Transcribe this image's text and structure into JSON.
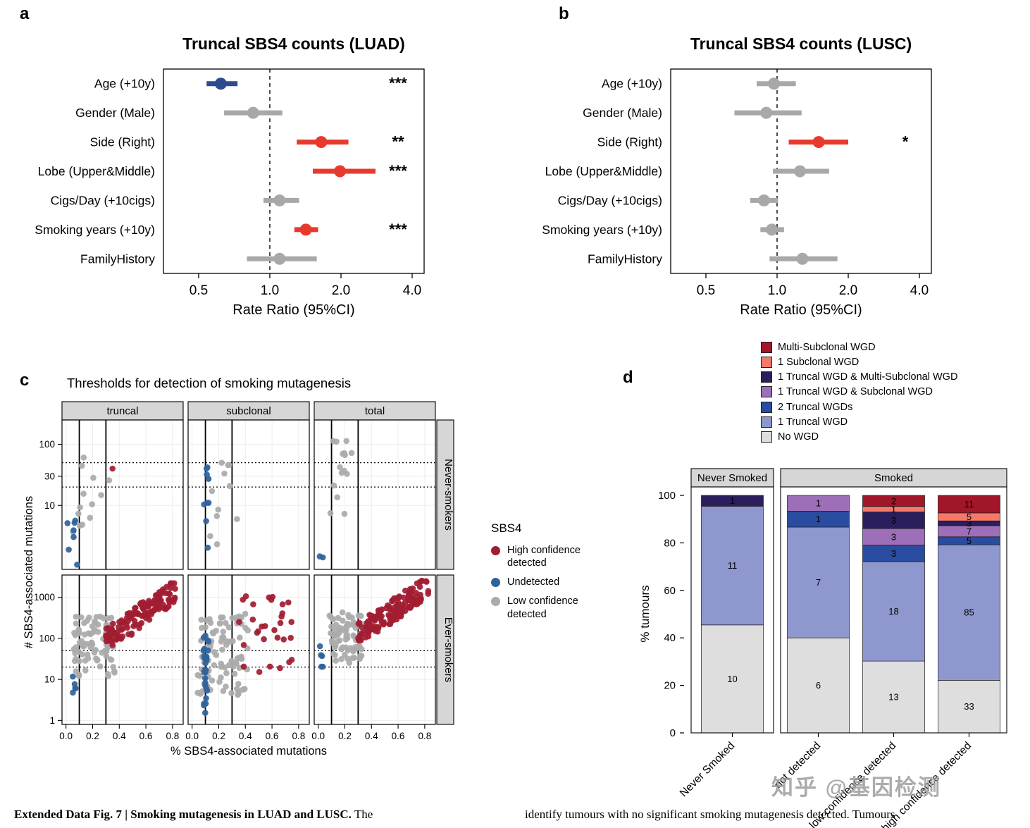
{
  "figure": {
    "panels": {
      "a": "a",
      "b": "b",
      "c": "c",
      "d": "d"
    },
    "watermark": "知乎 @基因检测",
    "caption": {
      "left_bold": "Extended Data Fig. 7 | Smoking mutagenesis in LUAD and LUSC.",
      "left_rest": " The",
      "right": "identify tumours with no significant smoking mutagenesis detected. Tumours"
    }
  },
  "colors": {
    "forest_red": "#E8392D",
    "forest_blue": "#2E4B8F",
    "forest_gray": "#A8A8A8",
    "scatter_high": "#A21D32",
    "scatter_undetected": "#30639C",
    "scatter_low": "#ABABAB",
    "strip_bg": "#D6D6D6",
    "wgd": {
      "Multi-Subclonal WGD": "#A11729",
      "1 Subclonal WGD": "#F4796B",
      "1 Truncal WGD & Multi-Subclonal WGD": "#2A1E5C",
      "1 Truncal WGD & Subclonal WGD": "#9C6FB8",
      "2 Truncal WGDs": "#2A4CA0",
      "1 Truncal WGD": "#8E97CE",
      "No WGD": "#DEDEDE"
    }
  },
  "chart_data": [
    {
      "id": "forest_luad",
      "type": "scatter",
      "subtype": "forest-plot",
      "title": "Truncal SBS4 counts (LUAD)",
      "xlabel": "Rate Ratio (95%CI)",
      "xscale": "log2",
      "xticks": [
        "0.5",
        "1.0",
        "2.0",
        "4.0"
      ],
      "xtick_values": [
        0.5,
        1.0,
        2.0,
        4.0
      ],
      "ref_line": 1.0,
      "rows": [
        {
          "label": "Age (+10y)",
          "est": 0.62,
          "lo": 0.54,
          "hi": 0.73,
          "group": "blue",
          "sig": "***"
        },
        {
          "label": "Gender (Male)",
          "est": 0.85,
          "lo": 0.64,
          "hi": 1.13,
          "group": "gray",
          "sig": ""
        },
        {
          "label": "Side (Right)",
          "est": 1.65,
          "lo": 1.3,
          "hi": 2.15,
          "group": "red",
          "sig": "**"
        },
        {
          "label": "Lobe (Upper&Middle)",
          "est": 1.98,
          "lo": 1.52,
          "hi": 2.8,
          "group": "red",
          "sig": "***"
        },
        {
          "label": "Cigs/Day (+10cigs)",
          "est": 1.1,
          "lo": 0.94,
          "hi": 1.33,
          "group": "gray",
          "sig": ""
        },
        {
          "label": "Smoking years (+10y)",
          "est": 1.42,
          "lo": 1.27,
          "hi": 1.6,
          "group": "red",
          "sig": "***"
        },
        {
          "label": "FamilyHistory",
          "est": 1.1,
          "lo": 0.8,
          "hi": 1.58,
          "group": "gray",
          "sig": ""
        }
      ]
    },
    {
      "id": "forest_lusc",
      "type": "scatter",
      "subtype": "forest-plot",
      "title": "Truncal SBS4 counts (LUSC)",
      "xlabel": "Rate Ratio (95%CI)",
      "xscale": "log2",
      "xticks": [
        "0.5",
        "1.0",
        "2.0",
        "4.0"
      ],
      "xtick_values": [
        0.5,
        1.0,
        2.0,
        4.0
      ],
      "ref_line": 1.0,
      "rows": [
        {
          "label": "Age (+10y)",
          "est": 0.97,
          "lo": 0.82,
          "hi": 1.2,
          "group": "gray",
          "sig": ""
        },
        {
          "label": "Gender (Male)",
          "est": 0.9,
          "lo": 0.66,
          "hi": 1.27,
          "group": "gray",
          "sig": ""
        },
        {
          "label": "Side (Right)",
          "est": 1.5,
          "lo": 1.12,
          "hi": 2.0,
          "group": "red",
          "sig": "*"
        },
        {
          "label": "Lobe (Upper&Middle)",
          "est": 1.25,
          "lo": 0.96,
          "hi": 1.66,
          "group": "gray",
          "sig": ""
        },
        {
          "label": "Cigs/Day (+10cigs)",
          "est": 0.88,
          "lo": 0.77,
          "hi": 1.01,
          "group": "gray",
          "sig": ""
        },
        {
          "label": "Smoking years (+10y)",
          "est": 0.95,
          "lo": 0.85,
          "hi": 1.07,
          "group": "gray",
          "sig": ""
        },
        {
          "label": "FamilyHistory",
          "est": 1.28,
          "lo": 0.93,
          "hi": 1.8,
          "group": "gray",
          "sig": ""
        }
      ]
    },
    {
      "id": "thresholds",
      "type": "scatter",
      "title": "Thresholds for detection of smoking mutagenesis",
      "xlabel": "% SBS4-associated mutations",
      "ylabel": "# SBS4-associated mutations",
      "col_facets": [
        "truncal",
        "subclonal",
        "total"
      ],
      "row_facets": [
        "Never-smokers",
        "Ever-smokers"
      ],
      "xticks": [
        "0.0",
        "0.2",
        "0.4",
        "0.6",
        "0.8"
      ],
      "xtick_values": [
        0,
        0.2,
        0.4,
        0.6,
        0.8
      ],
      "xlim": [
        -0.03,
        0.88
      ],
      "rows_cfg": [
        {
          "yticks": [
            10,
            30,
            100
          ],
          "ylim": [
            0.9,
            250
          ]
        },
        {
          "yticks": [
            1,
            10,
            100,
            1000
          ],
          "ylim": [
            0.8,
            3500
          ]
        }
      ],
      "vlines": [
        0.1,
        0.3
      ],
      "hlines_dotted": [
        20,
        50
      ],
      "legend": {
        "title": "SBS4",
        "items": [
          {
            "key": "high",
            "label": "High confidence detected"
          },
          {
            "key": "undetected",
            "label": "Undetected"
          },
          {
            "key": "low",
            "label": "Low confidence detected"
          }
        ]
      },
      "clusters": [
        {
          "row": 0,
          "col": 0,
          "key": "undetected",
          "n": 7,
          "x": [
            0.004,
            0.1
          ],
          "y": [
            1,
            6
          ]
        },
        {
          "row": 0,
          "col": 0,
          "key": "low",
          "n": 13,
          "x": [
            0.05,
            0.33
          ],
          "y": [
            3,
            65
          ]
        },
        {
          "row": 0,
          "col": 0,
          "key": "high",
          "n": 1,
          "x": [
            0.345,
            0.355
          ],
          "y": [
            40,
            44
          ]
        },
        {
          "row": 0,
          "col": 1,
          "key": "undetected",
          "n": 9,
          "x": [
            0.085,
            0.125
          ],
          "y": [
            2,
            45
          ]
        },
        {
          "row": 0,
          "col": 1,
          "key": "low",
          "n": 12,
          "x": [
            0.1,
            0.36
          ],
          "y": [
            2,
            60
          ]
        },
        {
          "row": 0,
          "col": 2,
          "key": "undetected",
          "n": 2,
          "x": [
            0.004,
            0.04
          ],
          "y": [
            1,
            1.6
          ]
        },
        {
          "row": 0,
          "col": 2,
          "key": "low",
          "n": 15,
          "x": [
            0.09,
            0.26
          ],
          "y": [
            7,
            115
          ]
        },
        {
          "row": 1,
          "col": 0,
          "key": "undetected",
          "n": 5,
          "x": [
            0.01,
            0.09
          ],
          "y": [
            4,
            50
          ]
        },
        {
          "row": 1,
          "col": 0,
          "key": "low",
          "n": 85,
          "x": [
            0.04,
            0.37
          ],
          "y": [
            12,
            350
          ]
        },
        {
          "row": 1,
          "col": 0,
          "key": "high",
          "n": 140,
          "x": [
            0.3,
            0.82
          ],
          "y": [
            60,
            2200
          ],
          "corr": true
        },
        {
          "row": 1,
          "col": 1,
          "key": "undetected",
          "n": 28,
          "x": [
            0.085,
            0.125
          ],
          "y": [
            1,
            120
          ]
        },
        {
          "row": 1,
          "col": 1,
          "key": "low",
          "n": 95,
          "x": [
            0.04,
            0.42
          ],
          "y": [
            4,
            400
          ]
        },
        {
          "row": 1,
          "col": 1,
          "key": "high",
          "n": 30,
          "x": [
            0.33,
            0.78
          ],
          "y": [
            15,
            1100
          ]
        },
        {
          "row": 1,
          "col": 2,
          "key": "undetected",
          "n": 5,
          "x": [
            0.01,
            0.07
          ],
          "y": [
            15,
            70
          ]
        },
        {
          "row": 1,
          "col": 2,
          "key": "low",
          "n": 75,
          "x": [
            0.08,
            0.33
          ],
          "y": [
            25,
            450
          ]
        },
        {
          "row": 1,
          "col": 2,
          "key": "high",
          "n": 150,
          "x": [
            0.3,
            0.83
          ],
          "y": [
            90,
            2600
          ],
          "corr": true
        }
      ]
    },
    {
      "id": "wgd",
      "type": "bar",
      "stacked": true,
      "normalized": true,
      "ylabel": "% tumours",
      "yticks": [
        0,
        20,
        40,
        60,
        80,
        100
      ],
      "legend_top_to_bottom": [
        "Multi-Subclonal WGD",
        "1 Subclonal WGD",
        "1 Truncal WGD & Multi-Subclonal WGD",
        "1 Truncal WGD & Subclonal WGD",
        "2 Truncal WGDs",
        "1 Truncal WGD",
        "No WGD"
      ],
      "stack_bottom_to_top": [
        "No WGD",
        "1 Truncal WGD",
        "2 Truncal WGDs",
        "1 Truncal WGD & Subclonal WGD",
        "1 Truncal WGD & Multi-Subclonal WGD",
        "1 Subclonal WGD",
        "Multi-Subclonal WGD"
      ],
      "facets": [
        {
          "label": "Never Smoked",
          "bars": [
            {
              "label": "Never Smoked",
              "counts": {
                "No WGD": 10,
                "1 Truncal WGD": 11,
                "1 Truncal WGD & Multi-Subclonal WGD": 1
              }
            }
          ]
        },
        {
          "label": "Smoked",
          "bars": [
            {
              "label": "not detected",
              "counts": {
                "No WGD": 6,
                "1 Truncal WGD": 7,
                "2 Truncal WGDs": 1,
                "1 Truncal WGD & Subclonal WGD": 1
              }
            },
            {
              "label": "low confidence detected",
              "counts": {
                "No WGD": 13,
                "1 Truncal WGD": 18,
                "2 Truncal WGDs": 3,
                "1 Truncal WGD & Subclonal WGD": 3,
                "1 Truncal WGD & Multi-Subclonal WGD": 3,
                "1 Subclonal WGD": 1,
                "Multi-Subclonal WGD": 2
              }
            },
            {
              "label": "high confidence detected",
              "counts": {
                "No WGD": 33,
                "1 Truncal WGD": 85,
                "2 Truncal WGDs": 5,
                "1 Truncal WGD & Subclonal WGD": 7,
                "1 Truncal WGD & Multi-Subclonal WGD": 3,
                "1 Subclonal WGD": 5,
                "Multi-Subclonal WGD": 11
              }
            }
          ]
        }
      ]
    }
  ]
}
